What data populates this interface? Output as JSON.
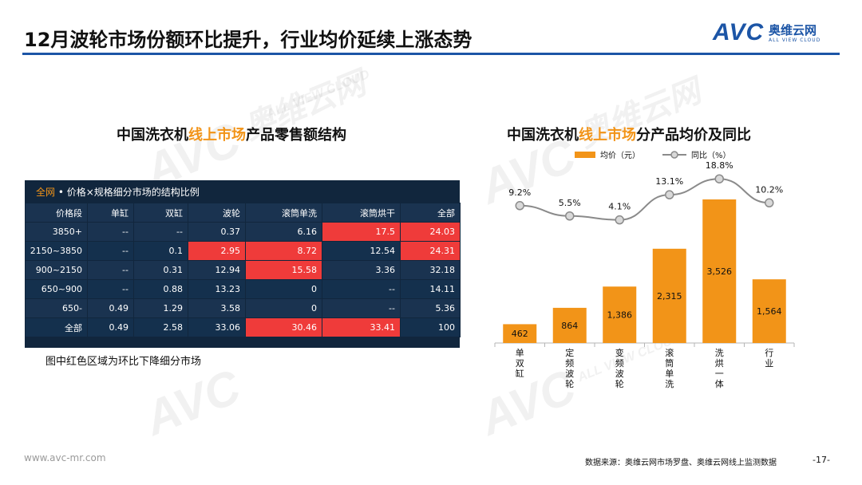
{
  "header": {
    "title": "12月波轮市场份额环比提升，行业均价延续上涨态势",
    "logo_mark": "AVC",
    "logo_cn": "奥维云网",
    "logo_en": "ALL VIEW CLOUD"
  },
  "watermark": {
    "mark": "AVC",
    "cn": "奥维云网",
    "en": "ALL VIEW CLOUD"
  },
  "left_panel": {
    "title_pre": "中国洗衣机",
    "title_hl": "线上市场",
    "title_post": "产品零售额结构",
    "table_title_hl": "全网",
    "table_title_rest": " • 价格×规格细分市场的结构比例",
    "note": "图中红色区域为环比下降细分市场"
  },
  "right_panel": {
    "title_pre": "中国洗衣机",
    "title_hl": "线上市场",
    "title_post": "分产品均价及同比"
  },
  "footer": {
    "url": "www.avc-mr.com",
    "source": "数据来源：奥维云网市场罗盘、奥维云网线上监测数据",
    "page": "-17-"
  },
  "chart_data": [
    {
      "type": "table",
      "columns": [
        "价格段",
        "单缸",
        "双缸",
        "波轮",
        "滚筒单洗",
        "滚筒烘干",
        "全部"
      ],
      "rows": [
        {
          "cells": [
            "3850+",
            "--",
            "--",
            "0.37",
            "6.16",
            "17.5",
            "24.03"
          ],
          "red": [
            5,
            6
          ]
        },
        {
          "cells": [
            "2150~3850",
            "--",
            "0.1",
            "2.95",
            "8.72",
            "12.54",
            "24.31"
          ],
          "red": [
            3,
            4,
            6
          ]
        },
        {
          "cells": [
            "900~2150",
            "--",
            "0.31",
            "12.94",
            "15.58",
            "3.36",
            "32.18"
          ],
          "red": [
            4
          ]
        },
        {
          "cells": [
            "650~900",
            "--",
            "0.88",
            "13.23",
            "0",
            "--",
            "14.11"
          ],
          "red": []
        },
        {
          "cells": [
            "650-",
            "0.49",
            "1.29",
            "3.58",
            "0",
            "--",
            "5.36"
          ],
          "red": []
        },
        {
          "cells": [
            "全部",
            "0.49",
            "2.58",
            "33.06",
            "30.46",
            "33.41",
            "100"
          ],
          "red": [
            4,
            5
          ]
        }
      ],
      "highlight_color": "#ef3b3a"
    },
    {
      "type": "bar",
      "categories": [
        "单双缸",
        "定频波轮",
        "变频波轮",
        "滚筒单洗",
        "洗烘一体",
        "行业"
      ],
      "series": [
        {
          "name": "均价（元）",
          "type": "bar",
          "color": "#f29418",
          "values": [
            462,
            864,
            1386,
            2315,
            3526,
            1564
          ],
          "labels": [
            "462",
            "864",
            "1,386",
            "2,315",
            "3,526",
            "1,564"
          ]
        },
        {
          "name": "同比（%）",
          "type": "line",
          "color": "#8a8a8a",
          "values": [
            9.2,
            5.5,
            4.1,
            13.1,
            18.8,
            10.2
          ],
          "labels": [
            "9.2%",
            "5.5%",
            "4.1%",
            "13.1%",
            "18.8%",
            "10.2%"
          ]
        }
      ],
      "legend": "top",
      "grid": false
    }
  ]
}
